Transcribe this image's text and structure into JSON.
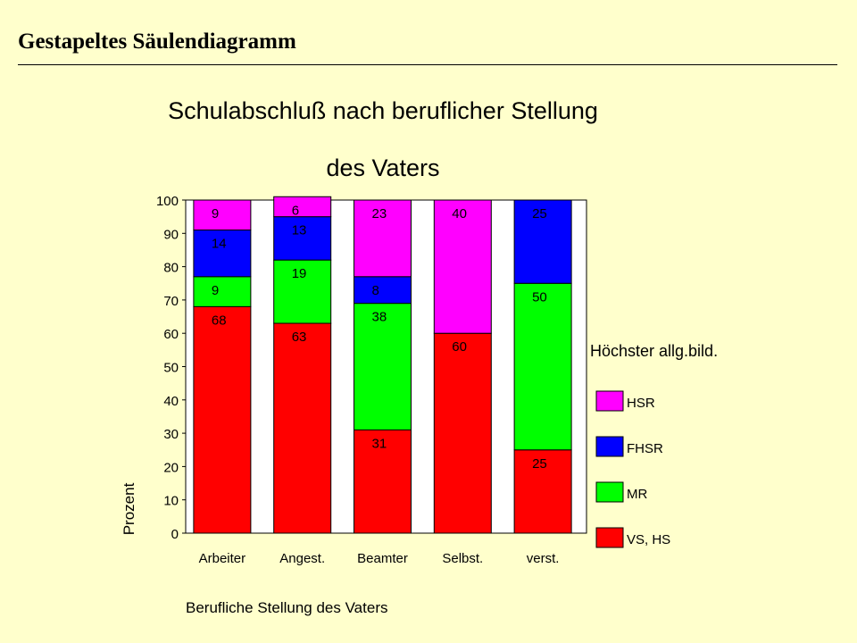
{
  "slide": {
    "title": "Gestapeltes Säulendiagramm"
  },
  "chart_data": {
    "type": "bar",
    "stacked": true,
    "title": [
      "Schulabschluß nach beruflicher Stellung",
      "des Vaters"
    ],
    "xlabel": "Berufliche Stellung des Vaters",
    "ylabel": "Prozent",
    "ylim": [
      0,
      100
    ],
    "yticks": [
      0,
      10,
      20,
      30,
      40,
      50,
      60,
      70,
      80,
      90,
      100
    ],
    "categories": [
      "Arbeiter",
      "Angest.",
      "Beamter",
      "Selbst.",
      "verst."
    ],
    "legend": {
      "title": "Höchster allg.bild.",
      "placement": "right"
    },
    "series": [
      {
        "name": "VS, HS",
        "color": "#ff0000",
        "values": [
          68,
          63,
          31,
          60,
          25
        ]
      },
      {
        "name": "MR",
        "color": "#00ff00",
        "values": [
          9,
          19,
          38,
          0,
          50
        ]
      },
      {
        "name": "FHSR",
        "color": "#0000ff",
        "values": [
          14,
          13,
          8,
          0,
          25
        ]
      },
      {
        "name": "HSR",
        "color": "#ff00ff",
        "values": [
          9,
          6,
          23,
          40,
          0
        ]
      }
    ]
  }
}
